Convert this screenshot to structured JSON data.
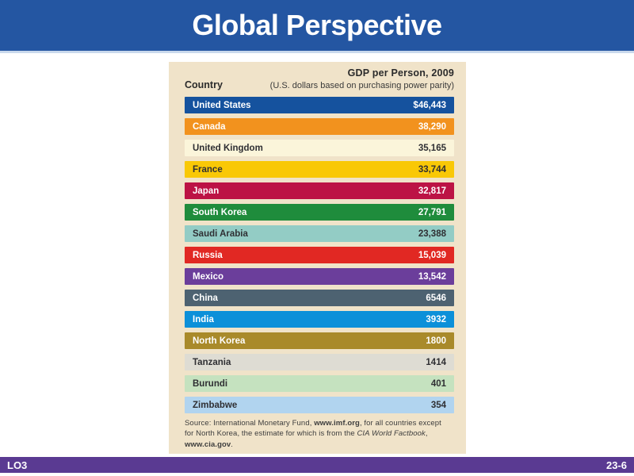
{
  "slide": {
    "title": "Global Perspective",
    "footer": {
      "left": "LO3",
      "right": "23-6"
    },
    "colors": {
      "header_bg": "#2456A2",
      "header_edge": "#C9D9EC",
      "footer_bg": "#5A3A92",
      "body_bg": "#FFFFFF"
    }
  },
  "figure": {
    "panel_bg": "#F0E3C9",
    "header": {
      "title": "GDP per Person, 2009",
      "subtitle": "(U.S. dollars based on purchasing power parity)",
      "country_label": "Country"
    },
    "rows": [
      {
        "country": "United States",
        "value": "$46,443",
        "bar_color": "#15529E",
        "text_color": "#FFFFFF"
      },
      {
        "country": "Canada",
        "value": "38,290",
        "bar_color": "#F2921E",
        "text_color": "#FFFFFF"
      },
      {
        "country": "United Kingdom",
        "value": "35,165",
        "bar_color": "#FBF5DA",
        "text_color": "#2F2F33"
      },
      {
        "country": "France",
        "value": "33,744",
        "bar_color": "#F9C806",
        "text_color": "#2F2F33"
      },
      {
        "country": "Japan",
        "value": "32,817",
        "bar_color": "#BC1345",
        "text_color": "#FFFFFF"
      },
      {
        "country": "South Korea",
        "value": "27,791",
        "bar_color": "#1F8C3C",
        "text_color": "#FFFFFF"
      },
      {
        "country": "Saudi Arabia",
        "value": "23,388",
        "bar_color": "#93CCC5",
        "text_color": "#2F2F33"
      },
      {
        "country": "Russia",
        "value": "15,039",
        "bar_color": "#E12823",
        "text_color": "#FFFFFF"
      },
      {
        "country": "Mexico",
        "value": "13,542",
        "bar_color": "#6B3E9B",
        "text_color": "#FFFFFF"
      },
      {
        "country": "China",
        "value": "6546",
        "bar_color": "#4D6271",
        "text_color": "#FFFFFF"
      },
      {
        "country": "India",
        "value": "3932",
        "bar_color": "#0C90D9",
        "text_color": "#FFFFFF"
      },
      {
        "country": "North Korea",
        "value": "1800",
        "bar_color": "#A98A2A",
        "text_color": "#FFFFFF"
      },
      {
        "country": "Tanzania",
        "value": "1414",
        "bar_color": "#DEDCD3",
        "text_color": "#2F2F33"
      },
      {
        "country": "Burundi",
        "value": "401",
        "bar_color": "#C5E2BF",
        "text_color": "#2F2F33"
      },
      {
        "country": "Zimbabwe",
        "value": "354",
        "bar_color": "#B1D4EF",
        "text_color": "#2F2F33"
      }
    ],
    "source": {
      "segments": [
        {
          "text": "Source: International Monetary Fund, ",
          "style": "normal"
        },
        {
          "text": "www.imf.org",
          "style": "bold"
        },
        {
          "text": ", for all countries except for North Korea, the estimate for which is from the ",
          "style": "normal"
        },
        {
          "text": "CIA World Factbook",
          "style": "italic"
        },
        {
          "text": ", ",
          "style": "normal"
        },
        {
          "text": "www.cia.gov",
          "style": "bold"
        },
        {
          "text": ".",
          "style": "normal"
        }
      ]
    }
  },
  "chart_data": {
    "type": "table",
    "title": "GDP per Person, 2009",
    "subtitle": "(U.S. dollars based on purchasing power parity)",
    "column_headers": [
      "Country",
      "GDP per Person, 2009"
    ],
    "categories": [
      "United States",
      "Canada",
      "United Kingdom",
      "France",
      "Japan",
      "South Korea",
      "Saudi Arabia",
      "Russia",
      "Mexico",
      "China",
      "India",
      "North Korea",
      "Tanzania",
      "Burundi",
      "Zimbabwe"
    ],
    "values": [
      46443,
      38290,
      35165,
      33744,
      32817,
      27791,
      23388,
      15039,
      13542,
      6546,
      3932,
      1800,
      1414,
      401,
      354
    ],
    "value_labels": [
      "$46,443",
      "38,290",
      "35,165",
      "33,744",
      "32,817",
      "27,791",
      "23,388",
      "15,039",
      "13,542",
      "6546",
      "3932",
      "1800",
      "1414",
      "401",
      "354"
    ],
    "source": "Source: International Monetary Fund, www.imf.org, for all countries except for North Korea, the estimate for which is from the CIA World Factbook, www.cia.gov."
  }
}
